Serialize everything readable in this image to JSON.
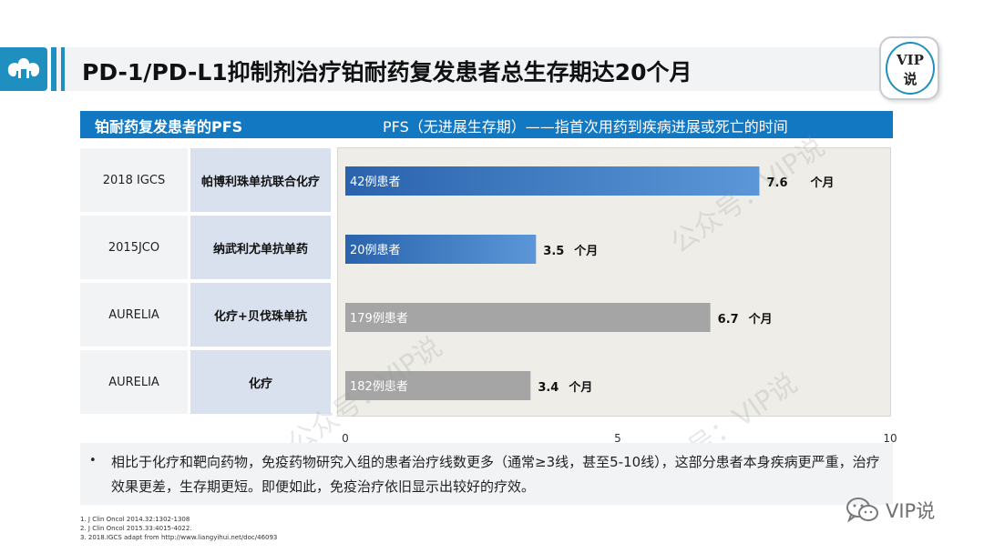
{
  "header": {
    "title": "PD-1/PD-L1抑制剂治疗铂耐药复发患者总生存期达20个月",
    "badge_line1": "VIP",
    "badge_line2": "说"
  },
  "band": {
    "left": "铂耐药复发患者的PFS",
    "right": "PFS（无进展生存期）——指首次用药到疾病进展或死亡的时间"
  },
  "rows": [
    {
      "source": "2018 IGCS",
      "drug": "帕博利珠单抗联合化疗"
    },
    {
      "source": "2015JCO",
      "drug": "纳武利尤单抗单药"
    },
    {
      "source": "AURELIA",
      "drug": "化疗+贝伐珠单抗"
    },
    {
      "source": "AURELIA",
      "drug": "化疗"
    }
  ],
  "chart_data": {
    "type": "bar",
    "orientation": "horizontal",
    "categories": [
      "帕博利珠单抗联合化疗",
      "纳武利尤单抗单药",
      "化疗+贝伐珠单抗",
      "化疗"
    ],
    "values": [
      7.6,
      3.5,
      6.7,
      3.4
    ],
    "bar_labels": [
      "42例患者",
      "20例患者",
      "179例患者",
      "182例患者"
    ],
    "value_unit": "个月",
    "xlim": [
      0,
      10
    ],
    "xticks": [
      0,
      5,
      10
    ],
    "colors": [
      "#2a63ad",
      "#2a63ad",
      "#a5a5a5",
      "#a5a5a5"
    ],
    "gradient_light": "#5b97d8",
    "grid": false
  },
  "note": {
    "bullet": "•",
    "text": "相比于化疗和靶向药物，免疫药物研究入组的患者治疗线数更多（通常≥3线，甚至5-10线），这部分患者本身疾病更严重，治疗效果更差，生存期更短。即便如此，免疫治疗依旧显示出较好的疗效。"
  },
  "references": [
    "1.  J Clin Oncol 2014.32:1302-1308",
    "2.  J Clin Oncol 2015.33:4015-4022.",
    "3.  2018.IGCS  adapt from http://www.liangyihui.net/doc/46093"
  ],
  "watermark": {
    "text": "公众号：VIP说",
    "brand": "VIP说"
  }
}
